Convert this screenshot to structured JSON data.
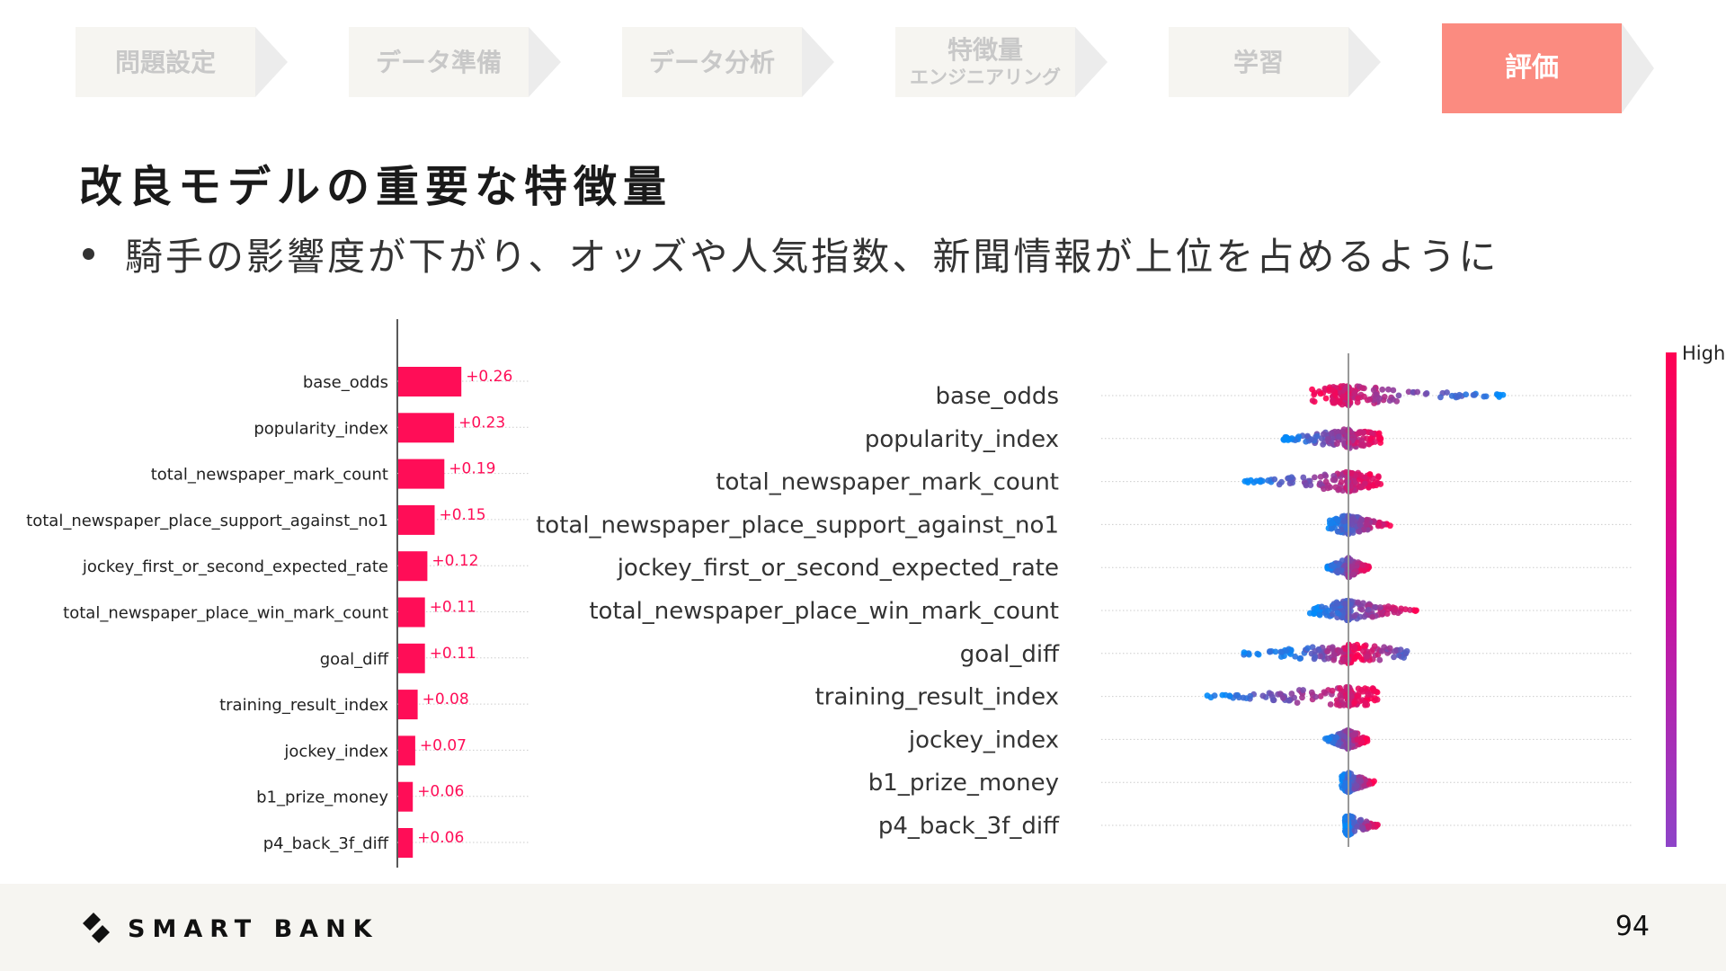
{
  "steps": [
    {
      "label": "問題設定",
      "sub": ""
    },
    {
      "label": "データ準備",
      "sub": ""
    },
    {
      "label": "データ分析",
      "sub": ""
    },
    {
      "label": "特徴量",
      "sub": "エンジニアリング"
    },
    {
      "label": "学習",
      "sub": ""
    },
    {
      "label": "評価",
      "sub": ""
    }
  ],
  "active_step": 5,
  "title": "改良モデルの重要な特徴量",
  "bullet": "騎手の影響度が下がり、オッズや人気指数、新聞情報が上位を占めるように",
  "colors": {
    "accent": "#fb8b80",
    "bar": "#ff0d57",
    "shap_low": "#008bfb",
    "shap_high": "#ff0052",
    "step_bg": "#f6f5f1"
  },
  "chart_data": [
    {
      "type": "bar",
      "orientation": "horizontal",
      "title": "",
      "categories": [
        "base_odds",
        "popularity_index",
        "total_newspaper_mark_count",
        "total_newspaper_place_support_against_no1",
        "jockey_first_or_second_expected_rate",
        "total_newspaper_place_win_mark_count",
        "goal_diff",
        "training_result_index",
        "jockey_index",
        "b1_prize_money",
        "p4_back_3f_diff"
      ],
      "values": [
        0.26,
        0.23,
        0.19,
        0.15,
        0.12,
        0.11,
        0.11,
        0.08,
        0.07,
        0.06,
        0.06
      ],
      "value_labels": [
        "+0.26",
        "+0.23",
        "+0.19",
        "+0.15",
        "+0.12",
        "+0.11",
        "+0.11",
        "+0.08",
        "+0.07",
        "+0.06",
        "+0.06"
      ],
      "xlim": [
        0,
        0.5
      ]
    },
    {
      "type": "scatter",
      "subtype": "beeswarm",
      "title": "",
      "categories": [
        "base_odds",
        "popularity_index",
        "total_newspaper_mark_count",
        "total_newspaper_place_support_against_no1",
        "jockey_first_or_second_expected_rate",
        "total_newspaper_place_win_mark_count",
        "goal_diff",
        "training_result_index",
        "jockey_index",
        "b1_prize_money",
        "p4_back_3f_diff"
      ],
      "xlim": [
        -0.9,
        1.0
      ],
      "zero_line": 0,
      "feature_ranges": [
        {
          "min": -0.22,
          "max": 0.94,
          "low_side": "right"
        },
        {
          "min": -0.38,
          "max": 0.19,
          "low_side": "left"
        },
        {
          "min": -0.6,
          "max": 0.19,
          "low_side": "left"
        },
        {
          "min": -0.12,
          "max": 0.25,
          "low_side": "left"
        },
        {
          "min": -0.13,
          "max": 0.12,
          "low_side": "left"
        },
        {
          "min": -0.23,
          "max": 0.4,
          "low_side": "left"
        },
        {
          "min": -0.65,
          "max": 0.34,
          "low_side": "center"
        },
        {
          "min": -0.82,
          "max": 0.17,
          "low_side": "left"
        },
        {
          "min": -0.14,
          "max": 0.11,
          "low_side": "left"
        },
        {
          "min": -0.04,
          "max": 0.15,
          "low_side": "left"
        },
        {
          "min": -0.02,
          "max": 0.17,
          "low_side": "left"
        }
      ],
      "colorbar": {
        "top_label": "High",
        "from": "#008bfb",
        "to": "#ff0052"
      }
    }
  ],
  "footer": {
    "brand": "SMART BANK",
    "page": "94"
  }
}
